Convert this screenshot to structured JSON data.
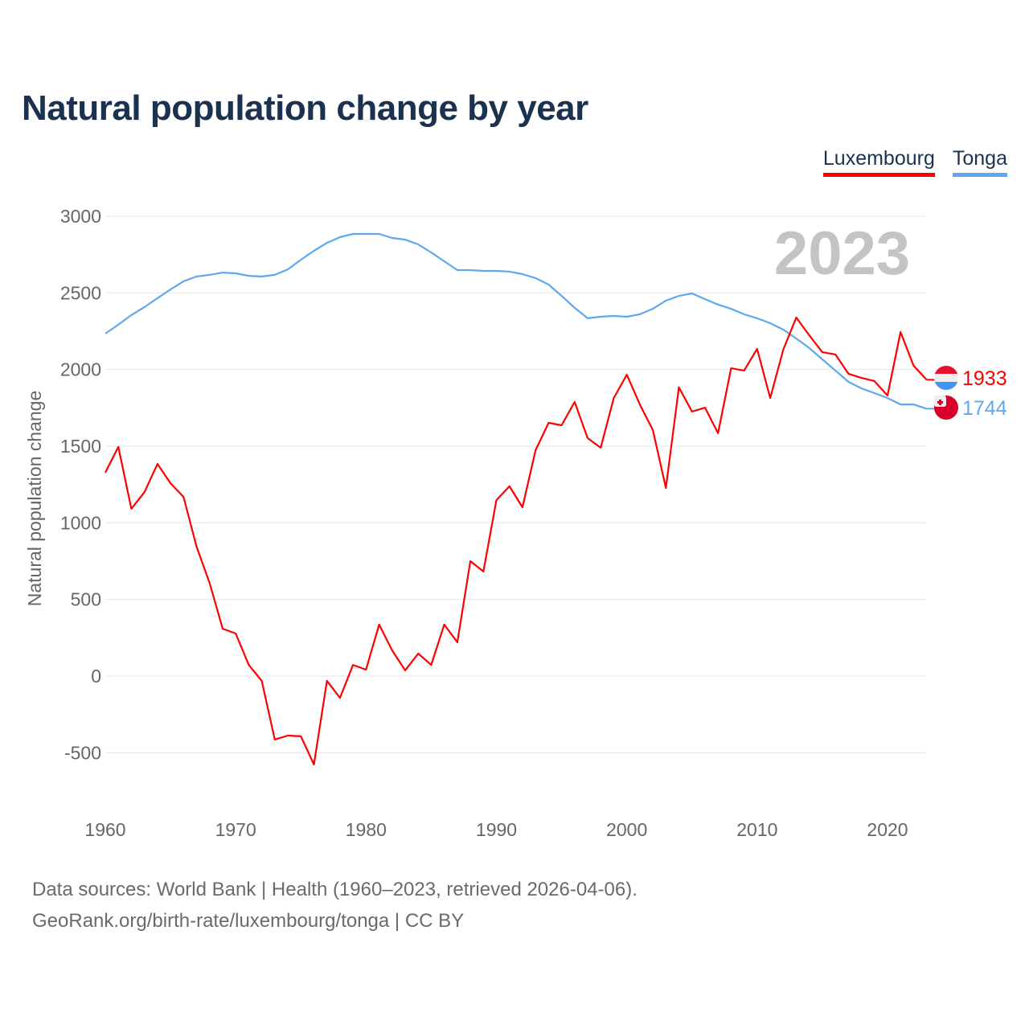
{
  "title": "Natural population change by year",
  "footer": {
    "line1": "Data sources: World Bank | Health (1960–2023, retrieved 2026-04-06).",
    "line2": "GeoRank.org/birth-rate/luxembourg/tonga | CC BY"
  },
  "chart_data": {
    "type": "line",
    "title": "Natural population change by year",
    "ylabel": "Natural population change",
    "xlabel": "",
    "year_label": "2023",
    "ylim": [
      -800,
      3000
    ],
    "xlim": [
      1960,
      2023
    ],
    "yticks": [
      "3000",
      "2500",
      "2000",
      "1500",
      "1000",
      "500",
      "0",
      "-500"
    ],
    "xticks": [
      "1960",
      "1970",
      "1980",
      "1990",
      "2000",
      "2010",
      "2020"
    ],
    "grid": true,
    "legend_position": "top-right",
    "x": [
      1960,
      1961,
      1962,
      1963,
      1964,
      1965,
      1966,
      1967,
      1968,
      1969,
      1970,
      1971,
      1972,
      1973,
      1974,
      1975,
      1976,
      1977,
      1978,
      1979,
      1980,
      1981,
      1982,
      1983,
      1984,
      1985,
      1986,
      1987,
      1988,
      1989,
      1990,
      1991,
      1992,
      1993,
      1994,
      1995,
      1996,
      1997,
      1998,
      1999,
      2000,
      2001,
      2002,
      2003,
      2004,
      2005,
      2006,
      2007,
      2008,
      2009,
      2010,
      2011,
      2012,
      2013,
      2014,
      2015,
      2016,
      2017,
      2018,
      2019,
      2020,
      2021,
      2022,
      2023
    ],
    "series": [
      {
        "name": "Luxembourg",
        "color": "#ff0000",
        "end_label": "1933",
        "values": [
          1327,
          1495,
          1091,
          1200,
          1384,
          1258,
          1169,
          844,
          608,
          309,
          278,
          73,
          -31,
          -414,
          -388,
          -393,
          -577,
          -31,
          -142,
          73,
          42,
          336,
          168,
          37,
          147,
          73,
          336,
          220,
          750,
          682,
          1148,
          1238,
          1101,
          1473,
          1652,
          1636,
          1788,
          1552,
          1489,
          1814,
          1966,
          1772,
          1605,
          1227,
          1883,
          1725,
          1751,
          1584,
          2008,
          1993,
          2134,
          1814,
          2129,
          2339,
          2223,
          2113,
          2098,
          1972,
          1945,
          1924,
          1830,
          2244,
          2024,
          1933
        ]
      },
      {
        "name": "Tonga",
        "color": "#5ea8ee",
        "end_label": "1744",
        "values": [
          2234,
          2292,
          2355,
          2407,
          2465,
          2522,
          2575,
          2606,
          2617,
          2632,
          2627,
          2611,
          2606,
          2617,
          2653,
          2716,
          2774,
          2826,
          2863,
          2884,
          2884,
          2884,
          2858,
          2847,
          2816,
          2763,
          2706,
          2648,
          2648,
          2643,
          2643,
          2638,
          2622,
          2596,
          2554,
          2480,
          2402,
          2334,
          2344,
          2349,
          2344,
          2360,
          2396,
          2449,
          2480,
          2496,
          2459,
          2423,
          2396,
          2360,
          2334,
          2302,
          2260,
          2202,
          2140,
          2066,
          1993,
          1919,
          1877,
          1846,
          1814,
          1772,
          1772,
          1744
        ]
      }
    ]
  }
}
